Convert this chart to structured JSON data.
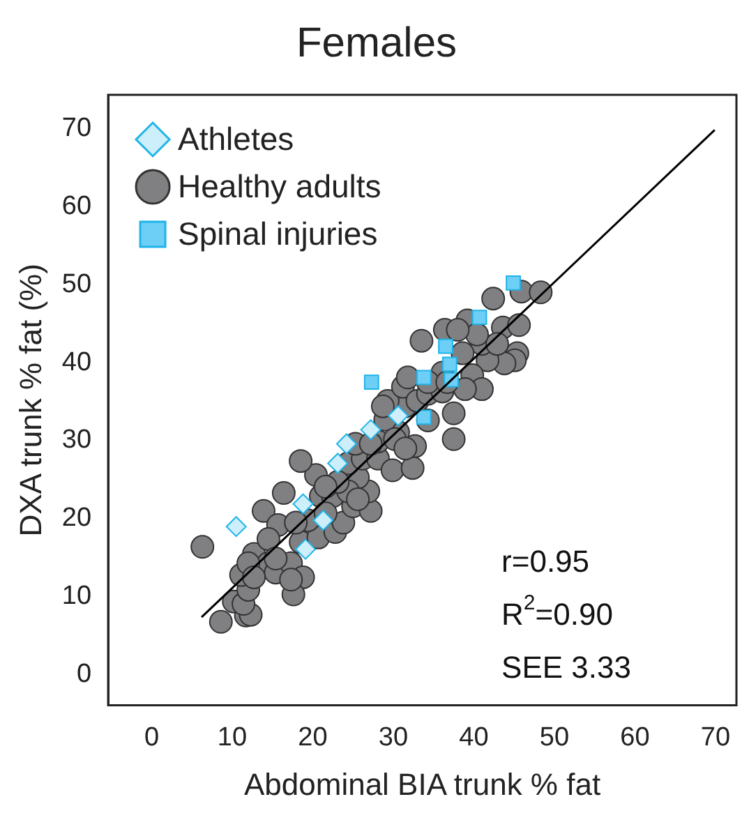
{
  "chart_data": {
    "type": "scatter",
    "title": "Females",
    "xlabel": "Abdominal BIA trunk % fat",
    "ylabel": "DXA trunk % fat (%)",
    "xlim": [
      -5.4,
      72.6
    ],
    "ylim": [
      -3.9,
      74.3
    ],
    "xticks": [
      0,
      10,
      20,
      30,
      40,
      50,
      60,
      70
    ],
    "yticks": [
      0,
      10,
      20,
      30,
      40,
      50,
      60,
      70
    ],
    "grid": false,
    "legend": "top left",
    "series": [
      {
        "name": "Athletes",
        "color": "#cdeefb",
        "marker": "diamond",
        "x": [
          10.5,
          18.8,
          27.2,
          24.2,
          23.1,
          21.3,
          19.1,
          30.6
        ],
        "values": [
          19.0,
          21.9,
          31.4,
          29.6,
          27.1,
          19.8,
          16.1,
          33.2
        ]
      },
      {
        "name": "Healthy adults",
        "color": "#808083",
        "marker": "circle",
        "x": [
          6.3,
          8.6,
          11.7,
          12.3,
          10.2,
          11.4,
          12.0,
          11.1,
          12.7,
          14.5,
          15.4,
          17.3,
          18.8,
          17.6,
          13.9,
          16.4,
          15.7,
          14.5,
          18.5,
          20.7,
          22.8,
          23.8,
          19.4,
          21.0,
          22.5,
          25.0,
          27.2,
          26.9,
          25.6,
          20.4,
          18.5,
          24.4,
          26.2,
          28.1,
          29.9,
          32.4,
          28.1,
          30.6,
          32.7,
          29.0,
          31.5,
          29.3,
          31.2,
          33.0,
          34.3,
          36.1,
          37.5,
          37.5,
          33.5,
          36.4,
          39.2,
          42.4,
          45.9,
          48.3,
          43.6,
          45.6,
          45.4,
          45.1,
          43.8,
          41.7,
          41.0,
          38.6,
          39.8,
          41.0,
          38.9,
          36.1,
          42.9,
          40.4,
          38.0,
          12.0,
          17.3,
          21.6,
          24.4,
          23.1,
          25.3,
          27.2,
          28.7,
          30.2,
          34.3,
          34.3,
          31.8,
          36.7,
          17.9,
          12.7,
          15.4,
          25.6,
          21.6,
          31.5
        ],
        "values": [
          16.4,
          6.8,
          7.6,
          7.7,
          9.4,
          9.1,
          10.9,
          12.8,
          15.5,
          14.3,
          13.1,
          14.3,
          12.5,
          10.3,
          21.0,
          23.3,
          19.2,
          17.4,
          17.0,
          17.6,
          18.3,
          19.5,
          19.8,
          22.9,
          22.9,
          21.6,
          21.0,
          23.5,
          25.3,
          25.6,
          27.4,
          27.1,
          27.7,
          27.7,
          26.2,
          26.5,
          29.9,
          31.1,
          29.3,
          32.7,
          34.4,
          35.1,
          36.9,
          35.1,
          36.0,
          36.3,
          33.5,
          30.2,
          42.8,
          44.2,
          45.4,
          48.2,
          49.1,
          49.0,
          44.5,
          44.8,
          41.2,
          40.3,
          39.9,
          40.3,
          42.4,
          41.2,
          38.4,
          36.6,
          36.6,
          38.7,
          42.4,
          43.6,
          44.2,
          14.3,
          12.2,
          20.7,
          23.5,
          24.7,
          29.6,
          29.6,
          34.4,
          30.2,
          32.6,
          37.5,
          38.1,
          37.5,
          19.5,
          12.5,
          14.9,
          22.5,
          24.1,
          29.0
        ]
      },
      {
        "name": "Spinal injuries",
        "color": "#6dcff6",
        "marker": "square",
        "x": [
          44.9,
          40.7,
          36.5,
          37.0,
          37.2,
          33.8,
          27.3,
          33.8
        ],
        "values": [
          50.2,
          45.8,
          42.1,
          39.8,
          37.8,
          38.1,
          37.5,
          33.0
        ]
      },
      {
        "type": "line",
        "color": "#000000",
        "marker": "none",
        "x": [
          6.2,
          69.9
        ],
        "values": [
          7.4,
          69.8
        ]
      }
    ],
    "annotations": [
      "r=0.95",
      "R$^{2}$=0.90",
      "SEE 3.33"
    ]
  }
}
